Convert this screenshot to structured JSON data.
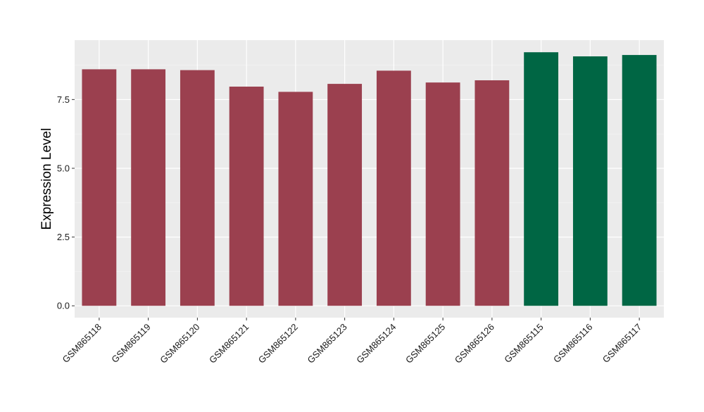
{
  "chart_data": {
    "type": "bar",
    "title": "",
    "xlabel": "",
    "ylabel": "Expression Level",
    "categories": [
      "GSM865118",
      "GSM865119",
      "GSM865120",
      "GSM865121",
      "GSM865122",
      "GSM865123",
      "GSM865124",
      "GSM865125",
      "GSM865126",
      "GSM865115",
      "GSM865116",
      "GSM865117"
    ],
    "values": [
      8.6,
      8.6,
      8.57,
      7.97,
      7.78,
      8.07,
      8.55,
      8.12,
      8.2,
      9.22,
      9.07,
      9.12
    ],
    "bar_colors": [
      "#9b404f",
      "#9b404f",
      "#9b404f",
      "#9b404f",
      "#9b404f",
      "#9b404f",
      "#9b404f",
      "#9b404f",
      "#9b404f",
      "#006644",
      "#006644",
      "#006644"
    ],
    "yticks": [
      0.0,
      2.5,
      5.0,
      7.5
    ],
    "ytick_labels": [
      "0.0",
      "2.5",
      "5.0",
      "7.5"
    ],
    "ylim": [
      -0.43,
      9.66
    ],
    "grid": true,
    "legend": "none",
    "colors": {
      "panel_background": "#ebebeb",
      "grid_major": "#ffffff",
      "grid_minor": "#f5f5f5",
      "tick": "#333333"
    }
  }
}
